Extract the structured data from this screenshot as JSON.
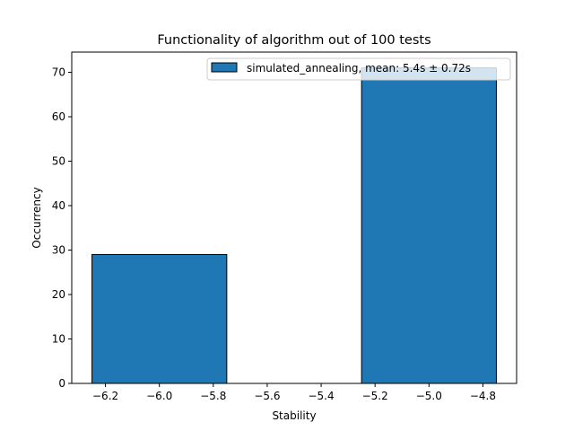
{
  "chart_data": {
    "type": "bar",
    "title": "Functionality of algorithm out of 100 tests",
    "xlabel": "Stability",
    "ylabel": "Occurrency",
    "bars": [
      {
        "x_start": -6.25,
        "x_end": -5.75,
        "value": 29
      },
      {
        "x_start": -5.25,
        "x_end": -4.75,
        "value": 71
      }
    ],
    "xlim": [
      -6.325,
      -4.675
    ],
    "ylim": [
      0,
      74.55
    ],
    "xticks": [
      -6.2,
      -6.0,
      -5.8,
      -5.6,
      -5.4,
      -5.2,
      -5.0,
      -4.8
    ],
    "xtick_labels": [
      "−6.2",
      "−6.0",
      "−5.8",
      "−5.6",
      "−5.4",
      "−5.2",
      "−5.0",
      "−4.8"
    ],
    "yticks": [
      0,
      10,
      20,
      30,
      40,
      50,
      60,
      70
    ],
    "ytick_labels": [
      "0",
      "10",
      "20",
      "30",
      "40",
      "50",
      "60",
      "70"
    ],
    "legend": {
      "label": "simulated_annealing, mean: 5.4s ± 0.72s",
      "position": "top-right"
    },
    "bar_color": "#1f77b4",
    "edge_color": "#000000",
    "grid": false
  }
}
